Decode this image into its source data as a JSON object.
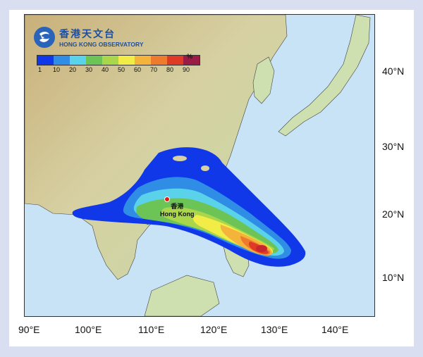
{
  "logo": {
    "name_cn": "香港天文台",
    "name_en": "HONG KONG OBSERVATORY",
    "icon": "hko-logo-icon"
  },
  "legend": {
    "unit": "%",
    "ticks": [
      "1",
      "10",
      "20",
      "30",
      "40",
      "50",
      "60",
      "70",
      "80",
      "90"
    ],
    "colors": [
      "#1038e8",
      "#2f8de6",
      "#5ad3ea",
      "#6cc457",
      "#a9d64a",
      "#f2ec47",
      "#f4b33b",
      "#ee7a2d",
      "#de3a26",
      "#9a1c44"
    ]
  },
  "axes": {
    "lat_labels": [
      "40°N",
      "30°N",
      "20°N",
      "10°N"
    ],
    "lon_labels": [
      "90°E",
      "100°E",
      "110°E",
      "120°E",
      "130°E",
      "140°E"
    ]
  },
  "place": {
    "name_cn": "香港",
    "name_en": "Hong Kong"
  }
}
